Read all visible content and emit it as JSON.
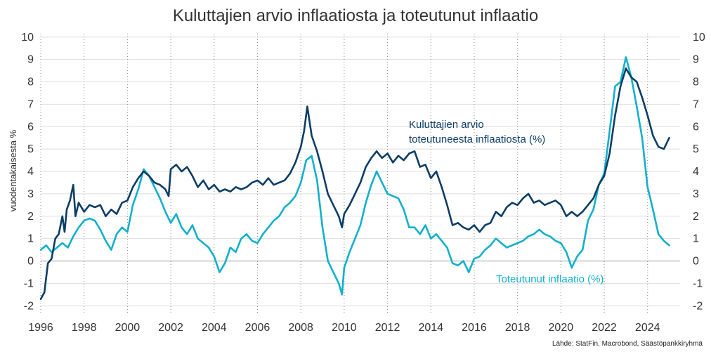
{
  "chart_data": {
    "type": "line",
    "title": "Kuluttajien arvio inflaatiosta ja toteutunut inflaatio",
    "ylabel": "vuodentakaisesta %",
    "source": "Lähde: StatFin, Macrobond, Säästöpankkiryhmä",
    "xlim": [
      1996,
      2025.5
    ],
    "ylim": [
      -2.4,
      10.4
    ],
    "x_ticks": [
      "1996",
      "1998",
      "2000",
      "2002",
      "2004",
      "2006",
      "2008",
      "2010",
      "2012",
      "2014",
      "2016",
      "2018",
      "2020",
      "2022",
      "2024"
    ],
    "y_ticks": [
      "-2",
      "-1",
      "0",
      "1",
      "2",
      "3",
      "4",
      "5",
      "6",
      "7",
      "8",
      "9",
      "10"
    ],
    "grid": {
      "horizontal": true,
      "vertical_dotted": true
    },
    "series": [
      {
        "name": "Kuluttajien arvio toteutuneesta inflaatiosta (%)",
        "label_lines": [
          "Kuluttajien arvio",
          "toteutuneesta inflaatiosta (%)"
        ],
        "color": "#0c3d66",
        "points": [
          [
            1996.0,
            -1.7
          ],
          [
            1996.17,
            -1.4
          ],
          [
            1996.33,
            -0.1
          ],
          [
            1996.5,
            0.1
          ],
          [
            1996.67,
            1.0
          ],
          [
            1996.83,
            1.2
          ],
          [
            1997.0,
            2.0
          ],
          [
            1997.1,
            1.3
          ],
          [
            1997.2,
            2.3
          ],
          [
            1997.35,
            2.7
          ],
          [
            1997.5,
            3.4
          ],
          [
            1997.6,
            2.0
          ],
          [
            1997.75,
            2.6
          ],
          [
            1998.0,
            2.2
          ],
          [
            1998.25,
            2.5
          ],
          [
            1998.5,
            2.4
          ],
          [
            1998.75,
            2.5
          ],
          [
            1999.0,
            2.0
          ],
          [
            1999.25,
            2.3
          ],
          [
            1999.5,
            2.1
          ],
          [
            1999.75,
            2.6
          ],
          [
            2000.0,
            2.7
          ],
          [
            2000.25,
            3.3
          ],
          [
            2000.5,
            3.7
          ],
          [
            2000.75,
            4.0
          ],
          [
            2001.0,
            3.8
          ],
          [
            2001.25,
            3.5
          ],
          [
            2001.5,
            3.4
          ],
          [
            2001.75,
            3.2
          ],
          [
            2001.9,
            2.9
          ],
          [
            2002.0,
            4.1
          ],
          [
            2002.25,
            4.3
          ],
          [
            2002.5,
            4.0
          ],
          [
            2002.75,
            4.2
          ],
          [
            2003.0,
            3.8
          ],
          [
            2003.25,
            3.3
          ],
          [
            2003.5,
            3.6
          ],
          [
            2003.75,
            3.2
          ],
          [
            2004.0,
            3.4
          ],
          [
            2004.25,
            3.1
          ],
          [
            2004.5,
            3.2
          ],
          [
            2004.75,
            3.1
          ],
          [
            2005.0,
            3.3
          ],
          [
            2005.25,
            3.2
          ],
          [
            2005.5,
            3.3
          ],
          [
            2005.75,
            3.5
          ],
          [
            2006.0,
            3.6
          ],
          [
            2006.25,
            3.4
          ],
          [
            2006.5,
            3.7
          ],
          [
            2006.75,
            3.4
          ],
          [
            2007.0,
            3.5
          ],
          [
            2007.25,
            3.6
          ],
          [
            2007.5,
            3.9
          ],
          [
            2007.75,
            4.4
          ],
          [
            2008.0,
            5.1
          ],
          [
            2008.15,
            5.8
          ],
          [
            2008.3,
            6.9
          ],
          [
            2008.5,
            5.6
          ],
          [
            2008.75,
            4.9
          ],
          [
            2009.0,
            4.0
          ],
          [
            2009.25,
            3.0
          ],
          [
            2009.5,
            2.5
          ],
          [
            2009.75,
            2.0
          ],
          [
            2009.9,
            1.5
          ],
          [
            2010.0,
            2.1
          ],
          [
            2010.25,
            2.5
          ],
          [
            2010.5,
            3.0
          ],
          [
            2010.75,
            3.5
          ],
          [
            2011.0,
            4.2
          ],
          [
            2011.25,
            4.6
          ],
          [
            2011.5,
            4.9
          ],
          [
            2011.75,
            4.6
          ],
          [
            2012.0,
            4.8
          ],
          [
            2012.25,
            4.4
          ],
          [
            2012.5,
            4.7
          ],
          [
            2012.75,
            4.5
          ],
          [
            2013.0,
            4.8
          ],
          [
            2013.25,
            4.9
          ],
          [
            2013.5,
            4.2
          ],
          [
            2013.75,
            4.3
          ],
          [
            2014.0,
            3.7
          ],
          [
            2014.25,
            4.0
          ],
          [
            2014.5,
            3.3
          ],
          [
            2014.75,
            2.5
          ],
          [
            2015.0,
            1.6
          ],
          [
            2015.25,
            1.7
          ],
          [
            2015.5,
            1.5
          ],
          [
            2015.75,
            1.4
          ],
          [
            2016.0,
            1.6
          ],
          [
            2016.25,
            1.3
          ],
          [
            2016.5,
            1.6
          ],
          [
            2016.75,
            1.7
          ],
          [
            2017.0,
            2.2
          ],
          [
            2017.25,
            2.0
          ],
          [
            2017.5,
            2.4
          ],
          [
            2017.75,
            2.6
          ],
          [
            2018.0,
            2.5
          ],
          [
            2018.25,
            2.8
          ],
          [
            2018.5,
            3.0
          ],
          [
            2018.75,
            2.6
          ],
          [
            2019.0,
            2.7
          ],
          [
            2019.25,
            2.5
          ],
          [
            2019.5,
            2.6
          ],
          [
            2019.75,
            2.7
          ],
          [
            2020.0,
            2.5
          ],
          [
            2020.25,
            2.0
          ],
          [
            2020.5,
            2.2
          ],
          [
            2020.75,
            2.0
          ],
          [
            2021.0,
            2.2
          ],
          [
            2021.25,
            2.5
          ],
          [
            2021.5,
            2.8
          ],
          [
            2021.75,
            3.4
          ],
          [
            2022.0,
            3.8
          ],
          [
            2022.25,
            4.8
          ],
          [
            2022.5,
            6.5
          ],
          [
            2022.75,
            7.8
          ],
          [
            2023.0,
            8.6
          ],
          [
            2023.25,
            8.2
          ],
          [
            2023.5,
            8.0
          ],
          [
            2023.75,
            7.3
          ],
          [
            2024.0,
            6.5
          ],
          [
            2024.25,
            5.6
          ],
          [
            2024.5,
            5.1
          ],
          [
            2024.75,
            5.0
          ],
          [
            2024.9,
            5.3
          ],
          [
            2025.0,
            5.5
          ]
        ]
      },
      {
        "name": "Toteutunut inflaatio (%)",
        "label_lines": [
          "Toteutunut inflaatio (%)"
        ],
        "color": "#12b0cb",
        "points": [
          [
            1996.0,
            0.5
          ],
          [
            1996.25,
            0.7
          ],
          [
            1996.5,
            0.4
          ],
          [
            1996.75,
            0.6
          ],
          [
            1997.0,
            0.8
          ],
          [
            1997.25,
            0.6
          ],
          [
            1997.5,
            1.1
          ],
          [
            1997.75,
            1.5
          ],
          [
            1998.0,
            1.8
          ],
          [
            1998.25,
            1.9
          ],
          [
            1998.5,
            1.8
          ],
          [
            1998.75,
            1.4
          ],
          [
            1999.0,
            0.9
          ],
          [
            1999.25,
            0.5
          ],
          [
            1999.5,
            1.2
          ],
          [
            1999.75,
            1.5
          ],
          [
            2000.0,
            1.3
          ],
          [
            2000.25,
            2.5
          ],
          [
            2000.5,
            3.2
          ],
          [
            2000.75,
            4.1
          ],
          [
            2001.0,
            3.8
          ],
          [
            2001.25,
            3.3
          ],
          [
            2001.5,
            2.8
          ],
          [
            2001.75,
            2.2
          ],
          [
            2002.0,
            1.7
          ],
          [
            2002.25,
            2.1
          ],
          [
            2002.5,
            1.5
          ],
          [
            2002.75,
            1.2
          ],
          [
            2003.0,
            1.6
          ],
          [
            2003.25,
            1.0
          ],
          [
            2003.5,
            0.8
          ],
          [
            2003.75,
            0.6
          ],
          [
            2004.0,
            0.2
          ],
          [
            2004.25,
            -0.5
          ],
          [
            2004.5,
            -0.1
          ],
          [
            2004.75,
            0.6
          ],
          [
            2005.0,
            0.4
          ],
          [
            2005.25,
            1.0
          ],
          [
            2005.5,
            1.2
          ],
          [
            2005.75,
            0.9
          ],
          [
            2006.0,
            0.8
          ],
          [
            2006.25,
            1.2
          ],
          [
            2006.5,
            1.5
          ],
          [
            2006.75,
            1.8
          ],
          [
            2007.0,
            2.0
          ],
          [
            2007.25,
            2.4
          ],
          [
            2007.5,
            2.6
          ],
          [
            2007.75,
            2.9
          ],
          [
            2008.0,
            3.5
          ],
          [
            2008.25,
            4.5
          ],
          [
            2008.5,
            4.7
          ],
          [
            2008.75,
            3.6
          ],
          [
            2009.0,
            1.5
          ],
          [
            2009.25,
            0.0
          ],
          [
            2009.5,
            -0.5
          ],
          [
            2009.75,
            -1.0
          ],
          [
            2009.9,
            -1.5
          ],
          [
            2010.0,
            -0.3
          ],
          [
            2010.25,
            0.4
          ],
          [
            2010.5,
            1.0
          ],
          [
            2010.75,
            1.6
          ],
          [
            2011.0,
            2.6
          ],
          [
            2011.25,
            3.4
          ],
          [
            2011.5,
            4.0
          ],
          [
            2011.75,
            3.5
          ],
          [
            2012.0,
            3.0
          ],
          [
            2012.25,
            2.9
          ],
          [
            2012.5,
            2.8
          ],
          [
            2012.75,
            2.3
          ],
          [
            2013.0,
            1.5
          ],
          [
            2013.25,
            1.5
          ],
          [
            2013.5,
            1.2
          ],
          [
            2013.75,
            1.6
          ],
          [
            2014.0,
            1.0
          ],
          [
            2014.25,
            1.2
          ],
          [
            2014.5,
            0.9
          ],
          [
            2014.75,
            0.6
          ],
          [
            2015.0,
            -0.1
          ],
          [
            2015.25,
            -0.2
          ],
          [
            2015.5,
            0.0
          ],
          [
            2015.75,
            -0.5
          ],
          [
            2016.0,
            0.1
          ],
          [
            2016.25,
            0.2
          ],
          [
            2016.5,
            0.5
          ],
          [
            2016.75,
            0.7
          ],
          [
            2017.0,
            1.0
          ],
          [
            2017.25,
            0.8
          ],
          [
            2017.5,
            0.6
          ],
          [
            2017.75,
            0.7
          ],
          [
            2018.0,
            0.8
          ],
          [
            2018.25,
            0.9
          ],
          [
            2018.5,
            1.1
          ],
          [
            2018.75,
            1.2
          ],
          [
            2019.0,
            1.4
          ],
          [
            2019.25,
            1.2
          ],
          [
            2019.5,
            1.1
          ],
          [
            2019.75,
            0.9
          ],
          [
            2020.0,
            0.8
          ],
          [
            2020.25,
            0.4
          ],
          [
            2020.5,
            -0.3
          ],
          [
            2020.75,
            0.2
          ],
          [
            2021.0,
            0.5
          ],
          [
            2021.25,
            1.8
          ],
          [
            2021.5,
            2.3
          ],
          [
            2021.75,
            3.4
          ],
          [
            2022.0,
            3.9
          ],
          [
            2022.25,
            5.8
          ],
          [
            2022.5,
            7.8
          ],
          [
            2022.75,
            8.0
          ],
          [
            2023.0,
            9.1
          ],
          [
            2023.25,
            8.2
          ],
          [
            2023.5,
            6.9
          ],
          [
            2023.75,
            5.5
          ],
          [
            2024.0,
            3.3
          ],
          [
            2024.25,
            2.3
          ],
          [
            2024.5,
            1.2
          ],
          [
            2024.75,
            0.9
          ],
          [
            2025.0,
            0.7
          ]
        ]
      }
    ]
  }
}
